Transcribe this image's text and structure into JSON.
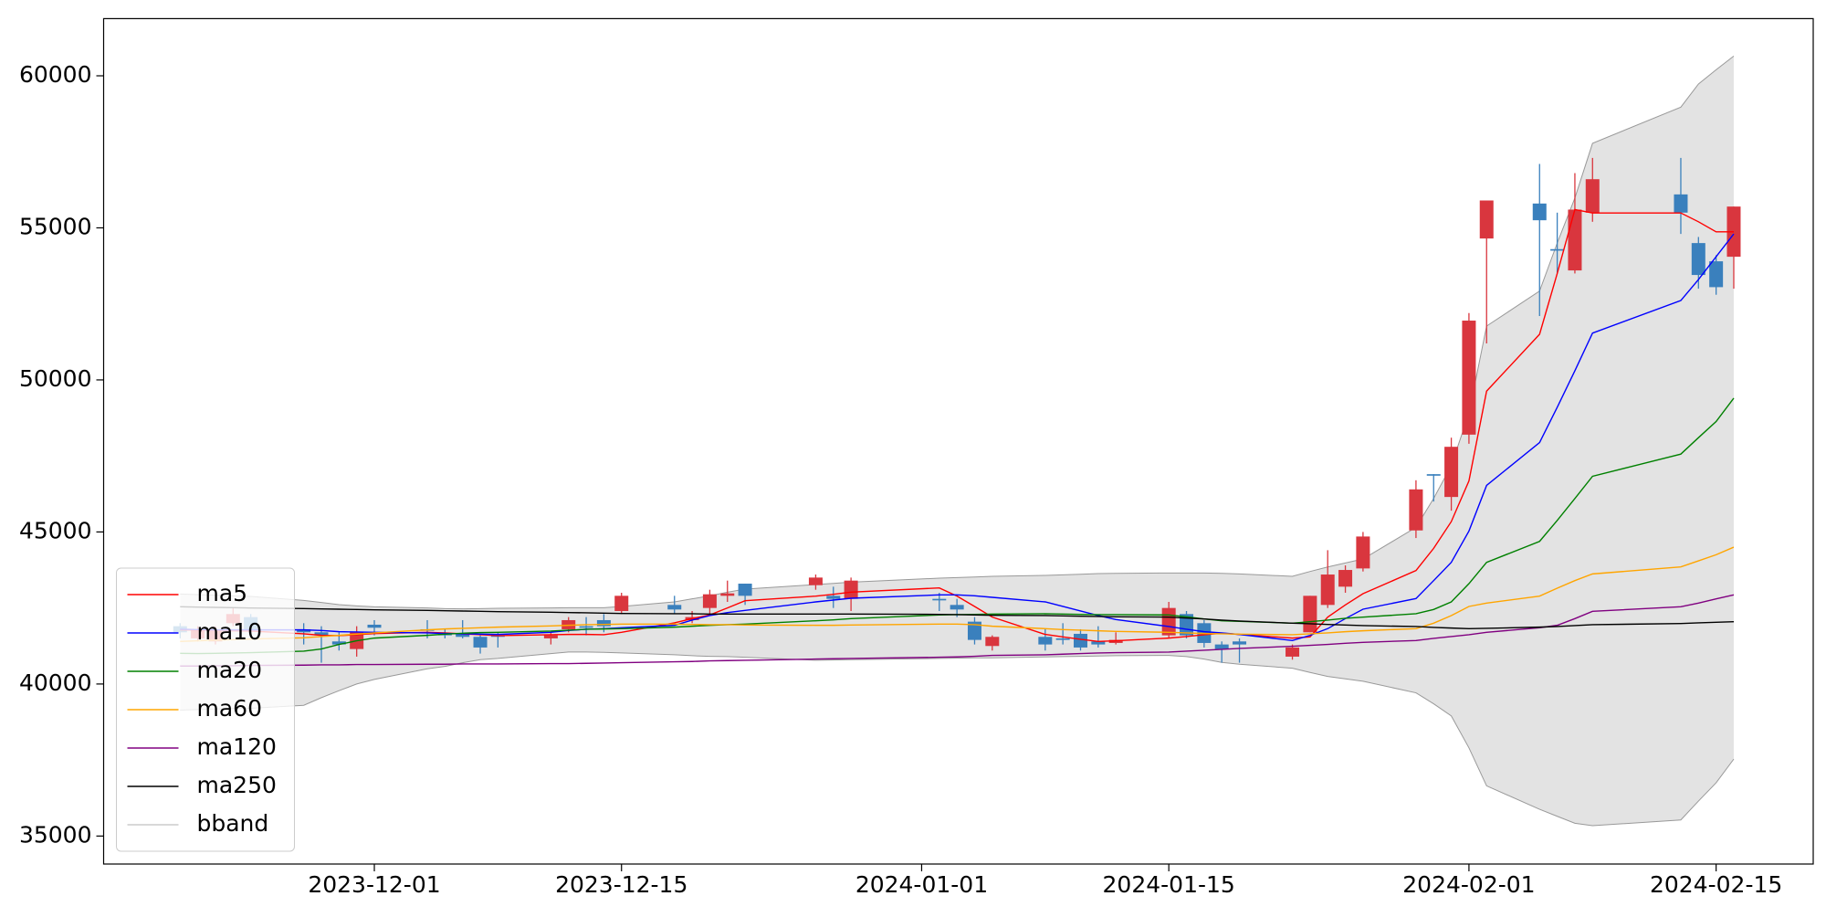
{
  "chart_data": {
    "type": "candlestick",
    "x": [
      "2023-11-20",
      "2023-11-21",
      "2023-11-22",
      "2023-11-23",
      "2023-11-24",
      "2023-11-27",
      "2023-11-28",
      "2023-11-29",
      "2023-11-30",
      "2023-12-01",
      "2023-12-04",
      "2023-12-05",
      "2023-12-06",
      "2023-12-07",
      "2023-12-08",
      "2023-12-11",
      "2023-12-12",
      "2023-12-13",
      "2023-12-14",
      "2023-12-15",
      "2023-12-18",
      "2023-12-19",
      "2023-12-20",
      "2023-12-21",
      "2023-12-22",
      "2023-12-26",
      "2023-12-27",
      "2023-12-28",
      "2024-01-02",
      "2024-01-03",
      "2024-01-04",
      "2024-01-05",
      "2024-01-08",
      "2024-01-09",
      "2024-01-10",
      "2024-01-11",
      "2024-01-12",
      "2024-01-15",
      "2024-01-16",
      "2024-01-17",
      "2024-01-18",
      "2024-01-19",
      "2024-01-22",
      "2024-01-23",
      "2024-01-24",
      "2024-01-25",
      "2024-01-26",
      "2024-01-29",
      "2024-01-30",
      "2024-01-31",
      "2024-02-01",
      "2024-02-02",
      "2024-02-05",
      "2024-02-06",
      "2024-02-07",
      "2024-02-08",
      "2024-02-13",
      "2024-02-14",
      "2024-02-15",
      "2024-02-16"
    ],
    "open": [
      41900,
      41500,
      41400,
      42000,
      42200,
      41800,
      41700,
      41400,
      41150,
      41950,
      41800,
      41650,
      41650,
      41550,
      41600,
      41500,
      41800,
      41900,
      42100,
      42400,
      42600,
      42100,
      42500,
      42900,
      43300,
      43250,
      42900,
      42800,
      42800,
      42600,
      42050,
      41250,
      41550,
      41500,
      41650,
      41400,
      41350,
      41600,
      42300,
      42000,
      41300,
      41400,
      40900,
      41700,
      42600,
      43200,
      43800,
      45050,
      46900,
      46150,
      48200,
      54650,
      55800,
      54300,
      53600,
      55500,
      56100,
      54500,
      53900,
      54050
    ],
    "high": [
      42000,
      41900,
      41900,
      42500,
      42300,
      42000,
      41900,
      41700,
      41900,
      42100,
      42100,
      41800,
      42100,
      41600,
      41700,
      41700,
      42200,
      42200,
      42300,
      43000,
      42900,
      42400,
      43100,
      43400,
      43300,
      43600,
      43200,
      43500,
      43000,
      42800,
      42200,
      41600,
      41800,
      42000,
      41800,
      41900,
      41700,
      42700,
      42400,
      42100,
      41400,
      41500,
      41300,
      42900,
      44400,
      43900,
      45000,
      46700,
      46900,
      48100,
      52200,
      55900,
      57100,
      55500,
      56800,
      57300,
      57300,
      54700,
      54100,
      55700
    ],
    "low": [
      41500,
      41400,
      41300,
      41900,
      41700,
      41300,
      40700,
      41100,
      40900,
      41600,
      41500,
      41500,
      41500,
      41000,
      41200,
      41300,
      41700,
      41600,
      41700,
      42300,
      42300,
      42000,
      42300,
      42700,
      42600,
      43100,
      42500,
      42400,
      42400,
      42200,
      41300,
      41100,
      41100,
      41300,
      41100,
      41200,
      41300,
      41500,
      41500,
      41200,
      40700,
      40700,
      40800,
      41700,
      42500,
      43000,
      43700,
      44800,
      46000,
      45700,
      47900,
      51200,
      52100,
      53500,
      53500,
      55200,
      54800,
      53000,
      52800,
      53000
    ],
    "close": [
      41700,
      41800,
      41800,
      42300,
      41800,
      41700,
      41600,
      41300,
      41700,
      41850,
      41750,
      41600,
      41550,
      41200,
      41550,
      41600,
      42100,
      41850,
      41900,
      42900,
      42450,
      42200,
      42950,
      42980,
      42900,
      43500,
      42800,
      43400,
      42750,
      42450,
      41450,
      41550,
      41300,
      41450,
      41200,
      41300,
      41450,
      42500,
      41600,
      41350,
      41150,
      41300,
      41200,
      42900,
      43600,
      43750,
      44850,
      46400,
      46850,
      47800,
      51950,
      55900,
      55250,
      54250,
      55600,
      56600,
      55500,
      53450,
      53050,
      55700
    ],
    "up_color": "#d9363e",
    "down_color": "#3a80bd",
    "series": [
      {
        "name": "ma5",
        "color": "#ff0000",
        "values": [
          41780,
          41770,
          41760,
          41750,
          41740,
          41650,
          41600,
          41590,
          41620,
          41660,
          41700,
          41680,
          41650,
          41620,
          41590,
          41620,
          41630,
          41630,
          41620,
          41700,
          42010,
          42150,
          42270,
          42500,
          42740,
          42890,
          42950,
          43020,
          43160,
          42890,
          42550,
          42200,
          41630,
          41550,
          41470,
          41400,
          41420,
          41510,
          41560,
          41620,
          41670,
          41630,
          41510,
          41550,
          42200,
          42600,
          42970,
          43730,
          44460,
          45340,
          46680,
          49630,
          51500,
          53500,
          55600,
          55490,
          55490,
          55200,
          54870,
          54870
        ]
      },
      {
        "name": "ma10",
        "color": "#0000ff",
        "values": [
          41800,
          41790,
          41780,
          41780,
          41780,
          41780,
          41760,
          41720,
          41710,
          41700,
          41680,
          41660,
          41650,
          41640,
          41630,
          41700,
          41760,
          41800,
          41820,
          41850,
          41930,
          42100,
          42250,
          42350,
          42420,
          42700,
          42760,
          42820,
          42930,
          42930,
          42900,
          42850,
          42700,
          42550,
          42400,
          42250,
          42120,
          41890,
          41800,
          41720,
          41680,
          41630,
          41430,
          41600,
          41820,
          42150,
          42460,
          42810,
          43400,
          44000,
          45030,
          46530,
          47940,
          49100,
          50300,
          51540,
          52610,
          53300,
          54050,
          54800
        ]
      },
      {
        "name": "ma20",
        "color": "#008000",
        "values": [
          41010,
          41000,
          41010,
          41020,
          41030,
          41080,
          41150,
          41300,
          41420,
          41510,
          41600,
          41640,
          41670,
          41690,
          41700,
          41740,
          41770,
          41800,
          41810,
          41820,
          41870,
          41900,
          41930,
          41950,
          41970,
          42080,
          42110,
          42150,
          42270,
          42280,
          42290,
          42300,
          42310,
          42300,
          42290,
          42280,
          42280,
          42270,
          42210,
          42140,
          42080,
          42060,
          42000,
          42050,
          42100,
          42160,
          42200,
          42310,
          42450,
          42700,
          43300,
          44000,
          44690,
          45380,
          46100,
          46830,
          47560,
          48100,
          48630,
          49400
        ]
      },
      {
        "name": "ma60",
        "color": "#ffa500",
        "values": [
          41400,
          41420,
          41440,
          41460,
          41480,
          41520,
          41560,
          41600,
          41640,
          41680,
          41780,
          41810,
          41830,
          41850,
          41870,
          41910,
          41930,
          41950,
          41960,
          41970,
          41970,
          41960,
          41950,
          41950,
          41940,
          41930,
          41930,
          41940,
          41970,
          41970,
          41950,
          41900,
          41820,
          41790,
          41770,
          41750,
          41730,
          41700,
          41680,
          41660,
          41650,
          41640,
          41620,
          41650,
          41680,
          41720,
          41750,
          41820,
          42000,
          42250,
          42550,
          42660,
          42890,
          43150,
          43400,
          43620,
          43850,
          44050,
          44250,
          44500
        ]
      },
      {
        "name": "ma120",
        "color": "#800080",
        "values": [
          40590,
          40590,
          40600,
          40600,
          40610,
          40620,
          40630,
          40630,
          40640,
          40640,
          40650,
          40650,
          40660,
          40660,
          40660,
          40670,
          40670,
          40680,
          40690,
          40700,
          40730,
          40740,
          40760,
          40770,
          40780,
          40820,
          40830,
          40840,
          40880,
          40890,
          40910,
          40940,
          40960,
          40980,
          41000,
          41020,
          41030,
          41050,
          41080,
          41110,
          41140,
          41170,
          41240,
          41270,
          41300,
          41340,
          41370,
          41430,
          41500,
          41560,
          41620,
          41700,
          41850,
          41930,
          42150,
          42390,
          42540,
          42660,
          42800,
          42930
        ]
      },
      {
        "name": "ma250",
        "color": "#000000",
        "values": [
          42540,
          42530,
          42520,
          42510,
          42500,
          42480,
          42470,
          42460,
          42450,
          42440,
          42420,
          42410,
          42400,
          42390,
          42380,
          42360,
          42350,
          42340,
          42330,
          42320,
          42310,
          42310,
          42300,
          42300,
          42300,
          42300,
          42300,
          42300,
          42290,
          42280,
          42270,
          42260,
          42250,
          42240,
          42230,
          42220,
          42210,
          42200,
          42170,
          42140,
          42100,
          42070,
          42000,
          41980,
          41960,
          41940,
          41920,
          41890,
          41860,
          41840,
          41820,
          41830,
          41870,
          41890,
          41920,
          41950,
          41990,
          42010,
          42030,
          42050
        ]
      }
    ],
    "band": {
      "name": "bband",
      "color": "#999999",
      "fill": "#e3e3e3",
      "upper": [
        42960,
        42940,
        42920,
        42900,
        42880,
        42750,
        42680,
        42610,
        42570,
        42540,
        42500,
        42480,
        42470,
        42480,
        42490,
        42500,
        42510,
        42510,
        42510,
        42550,
        42700,
        42800,
        42900,
        43020,
        43120,
        43270,
        43310,
        43350,
        43480,
        43500,
        43520,
        43540,
        43570,
        43590,
        43610,
        43630,
        43640,
        43650,
        43650,
        43650,
        43640,
        43620,
        43540,
        43700,
        43850,
        43980,
        44110,
        45150,
        46100,
        47180,
        48900,
        51770,
        52920,
        54500,
        55980,
        57780,
        58970,
        59730,
        60200,
        60650
      ],
      "lower": [
        39140,
        39160,
        39180,
        39190,
        39200,
        39300,
        39550,
        39780,
        40000,
        40150,
        40500,
        40580,
        40700,
        40800,
        40840,
        41000,
        41050,
        41050,
        41040,
        41020,
        40960,
        40930,
        40910,
        40900,
        40880,
        40780,
        40790,
        40800,
        40840,
        40850,
        40860,
        40860,
        40890,
        40900,
        40910,
        40920,
        40930,
        40940,
        40900,
        40820,
        40710,
        40650,
        40520,
        40380,
        40250,
        40170,
        40090,
        39710,
        39350,
        38950,
        37900,
        36650,
        35880,
        35650,
        35420,
        35340,
        35530,
        36150,
        36750,
        37530
      ]
    },
    "xlim": [
      "2023-11-15T16:00",
      "2024-02-20T12:00"
    ],
    "xticks": [
      "2023-12-01",
      "2023-12-15",
      "2024-01-01",
      "2024-01-15",
      "2024-02-01",
      "2024-02-15"
    ],
    "ylim": [
      34080,
      61880
    ],
    "yticks": [
      35000,
      40000,
      45000,
      50000,
      55000,
      60000
    ],
    "legend": "lower left",
    "grid": false
  }
}
